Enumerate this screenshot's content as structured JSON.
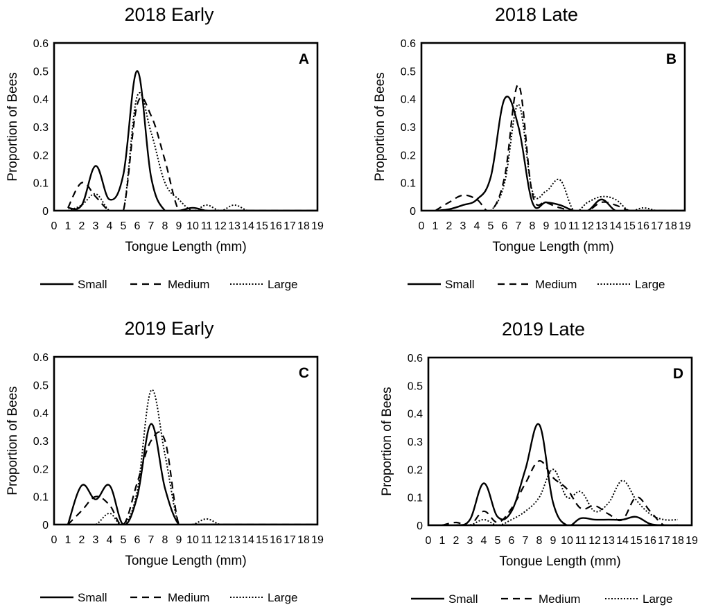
{
  "series_styles": [
    {
      "name": "Small",
      "dash": "",
      "width": 2.4,
      "color": "#000000"
    },
    {
      "name": "Medium",
      "dash": "10,7",
      "width": 2.2,
      "color": "#000000"
    },
    {
      "name": "Large",
      "dash": "2,2.5",
      "width": 2.0,
      "color": "#000000"
    }
  ],
  "chart_data": [
    {
      "type": "line",
      "title": "2018 Early",
      "panel": "A",
      "xlabel": "Tongue Length (mm)",
      "ylabel": "Proportion of Bees",
      "xlim": [
        0,
        19
      ],
      "ylim": [
        0,
        0.6
      ],
      "xticks": [
        0,
        1,
        2,
        3,
        4,
        5,
        6,
        7,
        8,
        9,
        10,
        11,
        12,
        13,
        14,
        15,
        16,
        17,
        18,
        19
      ],
      "yticks": [
        "0",
        "0.1",
        "0.2",
        "0.3",
        "0.4",
        "0.5",
        "0.6"
      ],
      "legend": [
        "Small",
        "Medium",
        "Large"
      ],
      "series": [
        {
          "name": "Small",
          "x": [
            1,
            2,
            3,
            4,
            5,
            6,
            7,
            8,
            9,
            10,
            11,
            12,
            13,
            14,
            15,
            16,
            17,
            18,
            19
          ],
          "y": [
            0.01,
            0.02,
            0.16,
            0.04,
            0.13,
            0.5,
            0.12,
            0.0,
            0.0,
            0.01,
            0.0,
            0.0,
            0.0,
            0.0,
            0.0,
            0.0,
            0.0,
            0.0,
            0.0
          ]
        },
        {
          "name": "Medium",
          "x": [
            1,
            2,
            3,
            4,
            5,
            6,
            7,
            8,
            9,
            10,
            11,
            12,
            13,
            14,
            15,
            16,
            17,
            18,
            19
          ],
          "y": [
            0.01,
            0.1,
            0.05,
            0.0,
            0.0,
            0.38,
            0.34,
            0.18,
            0.0,
            0.0,
            0.0,
            0.0,
            0.0,
            0.0,
            0.0,
            0.0,
            0.0,
            0.0,
            0.0
          ]
        },
        {
          "name": "Large",
          "x": [
            1,
            2,
            3,
            4,
            5,
            6,
            7,
            8,
            9,
            10,
            11,
            12,
            13,
            14,
            15,
            16,
            17,
            18,
            19
          ],
          "y": [
            0.0,
            0.02,
            0.06,
            0.0,
            0.0,
            0.41,
            0.28,
            0.1,
            0.04,
            0.0,
            0.02,
            0.0,
            0.02,
            0.0,
            0.0,
            0.0,
            0.0,
            0.0,
            0.0
          ]
        }
      ]
    },
    {
      "type": "line",
      "title": "2018 Late",
      "panel": "B",
      "xlabel": "Tongue Length (mm)",
      "ylabel": "Proportion of Bees",
      "xlim": [
        0,
        19
      ],
      "ylim": [
        0,
        0.6
      ],
      "xticks": [
        0,
        1,
        2,
        3,
        4,
        5,
        6,
        7,
        8,
        9,
        10,
        11,
        12,
        13,
        14,
        15,
        16,
        17,
        18,
        19
      ],
      "yticks": [
        "0",
        "0.1",
        "0.2",
        "0.3",
        "0.4",
        "0.5",
        "0.6"
      ],
      "legend": [
        "Small",
        "Medium",
        "Large"
      ],
      "series": [
        {
          "name": "Small",
          "x": [
            1,
            2,
            3,
            4,
            5,
            6,
            7,
            8,
            9,
            10,
            11,
            12,
            13,
            14,
            15,
            16,
            17,
            18,
            19
          ],
          "y": [
            0.0,
            0.005,
            0.02,
            0.04,
            0.12,
            0.4,
            0.3,
            0.03,
            0.03,
            0.02,
            0.0,
            0.0,
            0.04,
            0.0,
            0.0,
            0.0,
            0.0,
            0.0,
            0.0
          ]
        },
        {
          "name": "Medium",
          "x": [
            1,
            2,
            3,
            4,
            5,
            6,
            7,
            8,
            9,
            10,
            11,
            12,
            13,
            14,
            15,
            16,
            17,
            18,
            19
          ],
          "y": [
            0.0,
            0.03,
            0.055,
            0.04,
            0.0,
            0.12,
            0.45,
            0.06,
            0.03,
            0.01,
            0.0,
            0.0,
            0.03,
            0.02,
            0.0,
            0.0,
            0.0,
            0.0,
            0.0
          ]
        },
        {
          "name": "Large",
          "x": [
            1,
            2,
            3,
            4,
            5,
            6,
            7,
            8,
            9,
            10,
            11,
            12,
            13,
            14,
            15,
            16,
            17,
            18,
            19
          ],
          "y": [
            0.0,
            0.0,
            0.0,
            0.0,
            0.0,
            0.1,
            0.38,
            0.07,
            0.07,
            0.11,
            0.0,
            0.03,
            0.05,
            0.04,
            0.0,
            0.01,
            0.0,
            0.0,
            0.0
          ]
        }
      ]
    },
    {
      "type": "line",
      "title": "2019 Early",
      "panel": "C",
      "xlabel": "Tongue Length (mm)",
      "ylabel": "Proportion of Bees",
      "xlim": [
        0,
        19
      ],
      "ylim": [
        0,
        0.6
      ],
      "xticks": [
        0,
        1,
        2,
        3,
        4,
        5,
        6,
        7,
        8,
        9,
        10,
        11,
        12,
        13,
        14,
        15,
        16,
        17,
        18,
        19
      ],
      "yticks": [
        "0",
        "0.1",
        "0.2",
        "0.3",
        "0.4",
        "0.5",
        "0.6"
      ],
      "legend": [
        "Small",
        "Medium",
        "Large"
      ],
      "series": [
        {
          "name": "Small",
          "x": [
            1,
            2,
            3,
            4,
            5,
            6,
            7,
            8,
            9,
            10,
            11,
            12,
            13,
            14,
            15,
            16,
            17,
            18,
            19
          ],
          "y": [
            0.0,
            0.14,
            0.09,
            0.14,
            0.0,
            0.1,
            0.36,
            0.13,
            0.0,
            0.0,
            0.0,
            0.0,
            0.0,
            0.0,
            0.0,
            0.0,
            0.0,
            0.0,
            0.0
          ]
        },
        {
          "name": "Medium",
          "x": [
            1,
            2,
            3,
            4,
            5,
            6,
            7,
            8,
            9,
            10,
            11,
            12,
            13,
            14,
            15,
            16,
            17,
            18,
            19
          ],
          "y": [
            0.0,
            0.05,
            0.1,
            0.07,
            0.0,
            0.15,
            0.3,
            0.3,
            0.0,
            0.0,
            0.0,
            0.0,
            0.0,
            0.0,
            0.0,
            0.0,
            0.0,
            0.0,
            0.0
          ]
        },
        {
          "name": "Large",
          "x": [
            1,
            2,
            3,
            4,
            5,
            6,
            7,
            8,
            9,
            10,
            11,
            12,
            13,
            14,
            15,
            16,
            17,
            18,
            19
          ],
          "y": [
            0.0,
            0.0,
            0.0,
            0.04,
            0.0,
            0.12,
            0.48,
            0.25,
            0.0,
            0.0,
            0.02,
            0.0,
            0.0,
            0.0,
            0.0,
            0.0,
            0.0,
            0.0,
            0.0
          ]
        }
      ]
    },
    {
      "type": "line",
      "title": "2019 Late",
      "panel": "D",
      "xlabel": "Tongue Length (mm)",
      "ylabel": "Proportion of Bees",
      "xlim": [
        0,
        19
      ],
      "ylim": [
        0,
        0.6
      ],
      "xticks": [
        0,
        1,
        2,
        3,
        4,
        5,
        6,
        7,
        8,
        9,
        10,
        11,
        12,
        13,
        14,
        15,
        16,
        17,
        18,
        19
      ],
      "yticks": [
        "0",
        "0.1",
        "0.2",
        "0.3",
        "0.4",
        "0.5",
        "0.6"
      ],
      "legend": [
        "Small",
        "Medium",
        "Large"
      ],
      "series": [
        {
          "name": "Small",
          "x": [
            1,
            2,
            3,
            4,
            5,
            6,
            7,
            8,
            9,
            10,
            11,
            12,
            13,
            14,
            15,
            16,
            17,
            18
          ],
          "y": [
            0.0,
            0.0,
            0.02,
            0.15,
            0.03,
            0.05,
            0.2,
            0.36,
            0.08,
            0.0,
            0.025,
            0.02,
            0.02,
            0.02,
            0.03,
            0.005,
            0.0,
            0.0
          ]
        },
        {
          "name": "Medium",
          "x": [
            1,
            2,
            3,
            4,
            5,
            6,
            7,
            8,
            9,
            10,
            11,
            12,
            13,
            14,
            15,
            16,
            17,
            18
          ],
          "y": [
            0.0,
            0.01,
            0.0,
            0.05,
            0.01,
            0.06,
            0.15,
            0.23,
            0.17,
            0.13,
            0.06,
            0.07,
            0.04,
            0.02,
            0.1,
            0.05,
            0.0,
            0.0
          ]
        },
        {
          "name": "Large",
          "x": [
            1,
            2,
            3,
            4,
            5,
            6,
            7,
            8,
            9,
            10,
            11,
            12,
            13,
            14,
            15,
            16,
            17,
            18
          ],
          "y": [
            0.0,
            0.0,
            0.0,
            0.02,
            0.0,
            0.02,
            0.05,
            0.1,
            0.2,
            0.1,
            0.12,
            0.05,
            0.08,
            0.16,
            0.09,
            0.04,
            0.02,
            0.02
          ]
        }
      ]
    }
  ]
}
